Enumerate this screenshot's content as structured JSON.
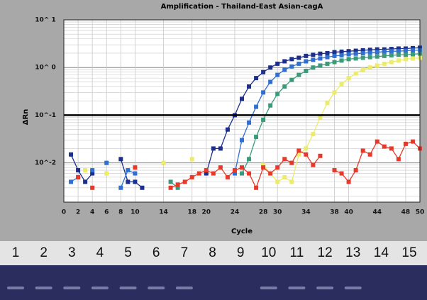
{
  "chart_data": {
    "type": "line",
    "title": "Amplification - Thailand-East Asian-cagA",
    "xlabel": "Cycle",
    "ylabel": "ΔRn",
    "log_y": true,
    "grid": true,
    "minor_grid": true,
    "threshold": 0.1,
    "xlim": [
      0,
      50
    ],
    "ylim": [
      0.0015,
      10
    ],
    "xticks": [
      0,
      2,
      4,
      6,
      8,
      10,
      14,
      18,
      20,
      24,
      28,
      30,
      34,
      38,
      40,
      44,
      48,
      50
    ],
    "yticks": [
      {
        "value": 10,
        "label": "10^ 1"
      },
      {
        "value": 1,
        "label": "10^ 0"
      },
      {
        "value": 0.1,
        "label": "10^-1"
      },
      {
        "value": 0.01,
        "label": "10^-2"
      }
    ],
    "x": [
      1,
      2,
      3,
      4,
      5,
      6,
      7,
      8,
      9,
      10,
      11,
      12,
      13,
      14,
      15,
      16,
      17,
      18,
      19,
      20,
      21,
      22,
      23,
      24,
      25,
      26,
      27,
      28,
      29,
      30,
      31,
      32,
      33,
      34,
      35,
      36,
      37,
      38,
      39,
      40,
      41,
      42,
      43,
      44,
      45,
      46,
      47,
      48,
      49,
      50
    ],
    "series": [
      {
        "color": "#1c2f8c",
        "values": [
          0.015,
          0.007,
          0.004,
          0.006,
          null,
          null,
          null,
          0.012,
          0.004,
          0.004,
          0.003,
          null,
          null,
          null,
          null,
          null,
          null,
          null,
          null,
          0.006,
          0.02,
          0.02,
          0.05,
          0.1,
          0.22,
          0.4,
          0.6,
          0.8,
          1.0,
          1.2,
          1.35,
          1.5,
          1.6,
          1.75,
          1.85,
          1.95,
          2.0,
          2.1,
          2.15,
          2.2,
          2.25,
          2.3,
          2.35,
          2.4,
          2.4,
          2.45,
          2.5,
          2.5,
          2.55,
          2.6
        ]
      },
      {
        "color": "#2f6fd0",
        "values": [
          0.004,
          0.005,
          null,
          0.007,
          null,
          0.01,
          null,
          0.003,
          0.007,
          0.006,
          null,
          null,
          null,
          null,
          null,
          null,
          null,
          null,
          null,
          null,
          null,
          null,
          null,
          0.006,
          0.03,
          0.07,
          0.15,
          0.3,
          0.5,
          0.7,
          0.9,
          1.05,
          1.2,
          1.35,
          1.45,
          1.55,
          1.65,
          1.75,
          1.8,
          1.9,
          1.95,
          2.0,
          2.05,
          2.1,
          2.15,
          2.2,
          2.2,
          2.25,
          2.3,
          2.3
        ]
      },
      {
        "color": "#3a9a7a",
        "values": [
          null,
          null,
          null,
          null,
          null,
          null,
          null,
          null,
          null,
          null,
          null,
          null,
          null,
          null,
          0.004,
          0.003,
          null,
          null,
          null,
          null,
          null,
          null,
          null,
          null,
          0.006,
          0.012,
          0.035,
          0.08,
          0.16,
          0.28,
          0.4,
          0.55,
          0.7,
          0.85,
          1.0,
          1.1,
          1.2,
          1.3,
          1.4,
          1.5,
          1.55,
          1.6,
          1.65,
          1.7,
          1.75,
          1.8,
          1.85,
          1.85,
          1.9,
          1.95
        ]
      },
      {
        "color": "#ecec6a",
        "values": [
          null,
          null,
          0.007,
          null,
          null,
          0.006,
          null,
          null,
          null,
          null,
          null,
          null,
          null,
          0.01,
          null,
          null,
          null,
          0.012,
          null,
          null,
          null,
          null,
          null,
          null,
          null,
          null,
          null,
          0.009,
          0.006,
          0.004,
          0.005,
          0.004,
          0.015,
          0.02,
          0.04,
          0.09,
          0.18,
          0.3,
          0.45,
          0.6,
          0.75,
          0.9,
          1.0,
          1.1,
          1.2,
          1.3,
          1.4,
          1.5,
          1.55,
          1.6
        ]
      },
      {
        "color": "#e8382a",
        "values": [
          null,
          0.005,
          null,
          0.003,
          null,
          null,
          null,
          null,
          null,
          0.008,
          null,
          null,
          null,
          null,
          0.003,
          0.0035,
          0.004,
          0.005,
          0.006,
          0.007,
          0.006,
          0.008,
          0.005,
          0.007,
          0.008,
          0.006,
          0.003,
          0.008,
          0.006,
          0.008,
          0.012,
          0.01,
          0.018,
          0.015,
          0.009,
          0.014,
          null,
          0.007,
          0.006,
          0.004,
          0.007,
          0.018,
          0.015,
          0.028,
          0.022,
          0.02,
          0.012,
          0.025,
          0.028,
          0.02
        ]
      }
    ]
  },
  "gel": {
    "lanes": [
      "1",
      "2",
      "3",
      "4",
      "5",
      "6",
      "7",
      "8",
      "9",
      "10",
      "11",
      "12",
      "13",
      "14",
      "15"
    ],
    "bands": [
      true,
      true,
      true,
      true,
      true,
      true,
      true,
      false,
      false,
      true,
      true,
      true,
      true,
      false,
      false
    ]
  }
}
